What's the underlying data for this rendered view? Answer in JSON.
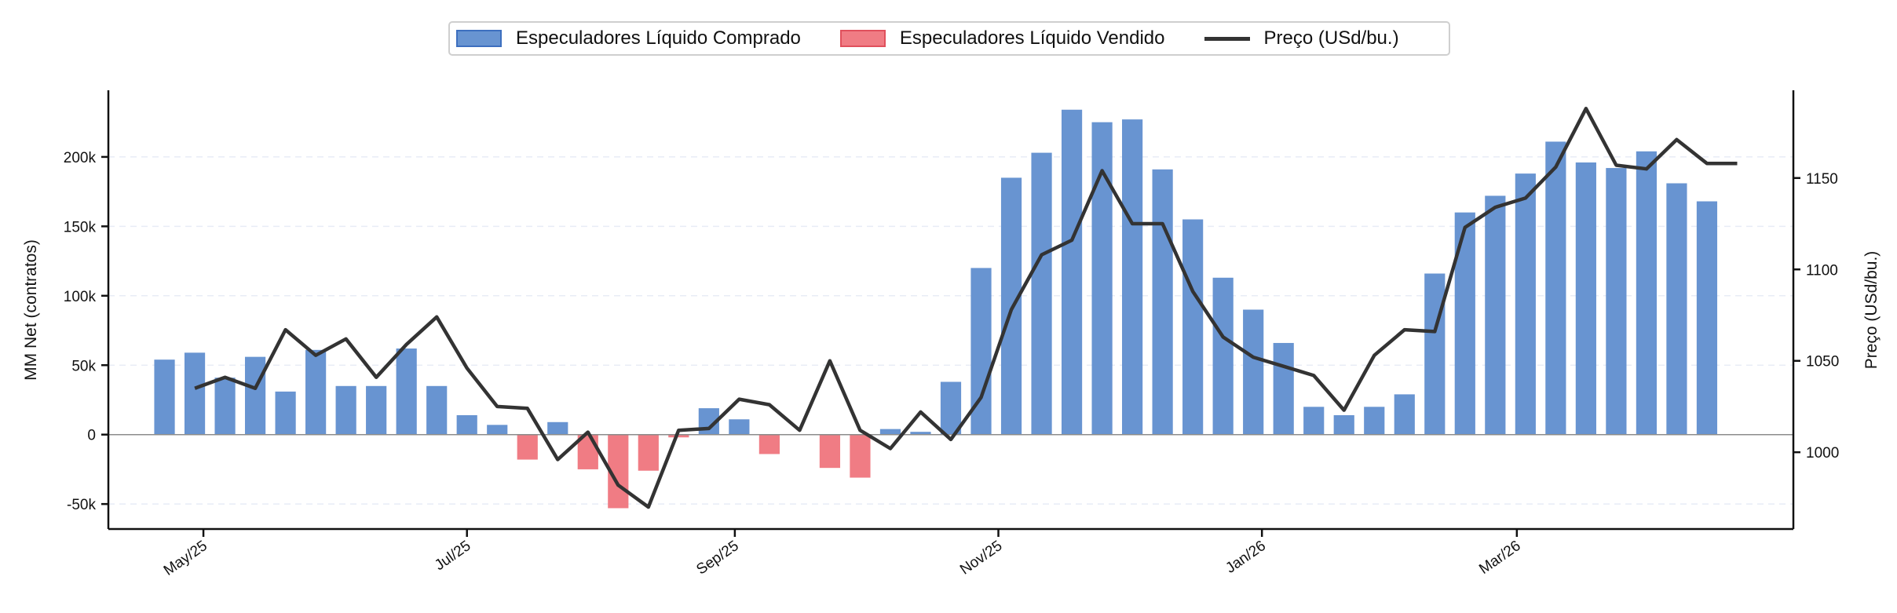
{
  "chart_data": {
    "type": "bar",
    "title": "",
    "legend": {
      "placement": "top-center",
      "entries": [
        {
          "label": "Especuladores Líquido Comprado",
          "kind": "bar",
          "color": "#6894d1"
        },
        {
          "label": "Especuladores Líquido Vendido",
          "kind": "bar",
          "color": "#f07c84"
        },
        {
          "label": "Preço (USd/bu.)",
          "kind": "line",
          "color": "#333333"
        }
      ]
    },
    "x_tick_labels": [
      "May/25",
      "Jul/25",
      "Sep/25",
      "Nov/25",
      "Jan/26",
      "Mar/26"
    ],
    "x_ticks": [
      "2025-05-01",
      "2025-07-01",
      "2025-09-01",
      "2025-11-01",
      "2026-01-01",
      "2026-03-01"
    ],
    "x": [
      "2025-04-22",
      "2025-04-29",
      "2025-05-06",
      "2025-05-13",
      "2025-05-20",
      "2025-05-27",
      "2025-06-03",
      "2025-06-10",
      "2025-06-17",
      "2025-06-24",
      "2025-07-01",
      "2025-07-08",
      "2025-07-15",
      "2025-07-22",
      "2025-07-29",
      "2025-08-05",
      "2025-08-12",
      "2025-08-19",
      "2025-08-26",
      "2025-09-02",
      "2025-09-09",
      "2025-09-16",
      "2025-09-23",
      "2025-09-30",
      "2025-10-07",
      "2025-10-14",
      "2025-10-21",
      "2025-10-28",
      "2025-11-04",
      "2025-11-11",
      "2025-11-18",
      "2025-11-25",
      "2025-12-02",
      "2025-12-09",
      "2025-12-16",
      "2025-12-23",
      "2025-12-30",
      "2026-01-06",
      "2026-01-13",
      "2026-01-20",
      "2026-01-27",
      "2026-02-03",
      "2026-02-10",
      "2026-02-17",
      "2026-02-24",
      "2026-03-03",
      "2026-03-10",
      "2026-03-17",
      "2026-03-24",
      "2026-03-31",
      "2026-04-07",
      "2026-04-14",
      "2026-04-21"
    ],
    "left_axis": {
      "label": "MM Net (contratos)",
      "ticks": [
        -50000,
        0,
        50000,
        100000,
        150000,
        200000
      ],
      "tick_labels": [
        "-50k",
        "0",
        "50k",
        "100k",
        "150k",
        "200k"
      ],
      "ylim": [
        -68000,
        248000
      ]
    },
    "right_axis": {
      "label": "Preço (USd/bu.)",
      "ticks": [
        1000,
        1050,
        1100,
        1150
      ],
      "tick_labels": [
        "1000",
        "1050",
        "1100",
        "1150"
      ],
      "ylim": [
        958,
        1198
      ]
    },
    "grid": "horizontal-dashed",
    "series": [
      {
        "name": "Especuladores Líquido Comprado / Vendido",
        "type": "bar",
        "axis": "left",
        "positive_color": "#6894d1",
        "negative_color": "#f07c84",
        "values": [
          54000,
          59000,
          41000,
          56000,
          31000,
          61000,
          35000,
          35000,
          62000,
          35000,
          14000,
          7000,
          -18000,
          9000,
          -25000,
          -53000,
          -26000,
          -2000,
          19000,
          11000,
          -14000,
          0,
          -24000,
          -31000,
          4000,
          2000,
          38000,
          120000,
          185000,
          203000,
          234000,
          225000,
          227000,
          191000,
          155000,
          113000,
          90000,
          66000,
          20000,
          14000,
          20000,
          29000,
          116000,
          160000,
          172000,
          188000,
          211000,
          196000,
          192000,
          204000,
          181000,
          168000,
          0
        ]
      },
      {
        "name": "Preço (USd/bu.)",
        "type": "line",
        "axis": "right",
        "color": "#333333",
        "values": [
          null,
          1035,
          1041,
          1035,
          1067,
          1053,
          1062,
          1041,
          1059,
          1074,
          1046,
          1025,
          1024,
          996,
          1011,
          982,
          970,
          1012,
          1013,
          1029,
          1026,
          1012,
          1050,
          1012,
          1002,
          1022,
          1007,
          1030,
          1078,
          1108,
          1116,
          1154,
          1125,
          1125,
          1088,
          1063,
          1052,
          1047,
          1042,
          1023,
          1053,
          1067,
          1066,
          1123,
          1134,
          1139,
          1156,
          1188,
          1157,
          1155,
          1171,
          1158,
          1158
        ]
      }
    ]
  }
}
